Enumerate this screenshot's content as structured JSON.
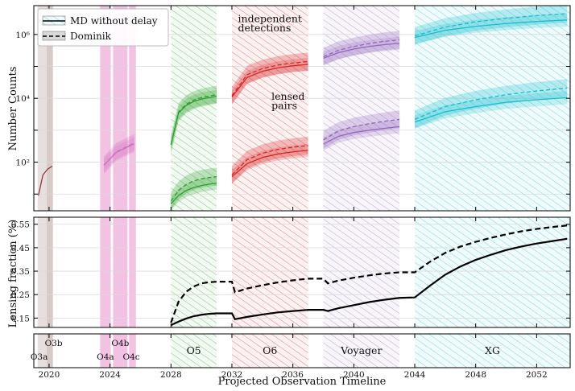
{
  "colors": {
    "O3": "#b9a39d",
    "O4": "#e377c2",
    "O5": "#2ca02c",
    "O6": "#d62728",
    "Voyager": "#9467bd",
    "XG": "#17becf",
    "O3_curve": "#8c3b3b",
    "O4_curve": "#cf6fc0",
    "fraction": "#000000"
  },
  "chart_data": [
    {
      "id": "counts",
      "type": "line",
      "ylabel": "Number Counts",
      "yscale": "log",
      "ylim": [
        3,
        8000000
      ],
      "yticks": [
        {
          "value": 100,
          "label": "10²"
        },
        {
          "value": 10000,
          "label": "10⁴"
        },
        {
          "value": 1000000,
          "label": "10⁶"
        }
      ],
      "legend": {
        "position": "top-left",
        "entries": [
          {
            "label": "MD without delay",
            "style": "solid"
          },
          {
            "label": "Dominik",
            "style": "dashed"
          }
        ]
      },
      "annotations": [
        {
          "text": "independent",
          "year": 2032.4,
          "y": 2400000
        },
        {
          "text": "detections",
          "year": 2032.4,
          "y": 1250000
        },
        {
          "text": "lensed",
          "year": 2034.6,
          "y": 9000
        },
        {
          "text": "pairs",
          "year": 2034.6,
          "y": 4600
        }
      ],
      "series": [
        {
          "run": "O3",
          "kind": "independent",
          "model": "MD without delay",
          "x": [
            2019.3,
            2019.6,
            2019.9,
            2020.2
          ],
          "y": [
            9,
            40,
            60,
            75
          ]
        },
        {
          "run": "O4",
          "kind": "independent",
          "model": "MD without delay",
          "x": [
            2023.6,
            2024.4,
            2025.6
          ],
          "y": [
            80,
            200,
            380
          ]
        },
        {
          "run": "O4",
          "kind": "independent",
          "model": "Dominik",
          "x": [
            2023.6,
            2024.4,
            2025.6
          ],
          "y": [
            80,
            210,
            400
          ]
        },
        {
          "run": "O5",
          "kind": "independent",
          "model": "MD without delay",
          "x": [
            2028.0,
            2028.5,
            2029.0,
            2029.5,
            2030.0,
            2030.5,
            2031.0
          ],
          "y": [
            350,
            3500,
            6000,
            8000,
            9500,
            10500,
            11500
          ]
        },
        {
          "run": "O5",
          "kind": "independent",
          "model": "Dominik",
          "x": [
            2028.0,
            2028.5,
            2029.0,
            2029.5,
            2030.0,
            2030.5,
            2031.0
          ],
          "y": [
            350,
            3700,
            6500,
            8800,
            10500,
            11800,
            13000
          ]
        },
        {
          "run": "O5",
          "kind": "lensed",
          "model": "MD without delay",
          "x": [
            2028.0,
            2028.5,
            2029.0,
            2029.5,
            2030.0,
            2030.5,
            2031.0
          ],
          "y": [
            5,
            9,
            13,
            16,
            18.5,
            20.5,
            22
          ]
        },
        {
          "run": "O5",
          "kind": "lensed",
          "model": "Dominik",
          "x": [
            2028.0,
            2028.5,
            2029.0,
            2029.5,
            2030.0,
            2030.5,
            2031.0
          ],
          "y": [
            6,
            13,
            20,
            26,
            30,
            33,
            35
          ]
        },
        {
          "run": "O6",
          "kind": "independent",
          "model": "MD without delay",
          "x": [
            2032.0,
            2033.0,
            2034.0,
            2035.0,
            2036.0,
            2037.0
          ],
          "y": [
            11000,
            45000,
            70000,
            90000,
            105000,
            115000
          ]
        },
        {
          "run": "O6",
          "kind": "independent",
          "model": "Dominik",
          "x": [
            2032.0,
            2033.0,
            2034.0,
            2035.0,
            2036.0,
            2037.0
          ],
          "y": [
            12000,
            55000,
            85000,
            110000,
            128000,
            142000
          ]
        },
        {
          "run": "O6",
          "kind": "lensed",
          "model": "MD without delay",
          "x": [
            2032.0,
            2033.0,
            2034.0,
            2035.0,
            2036.0,
            2037.0
          ],
          "y": [
            35,
            90,
            140,
            180,
            210,
            235
          ]
        },
        {
          "run": "O6",
          "kind": "lensed",
          "model": "Dominik",
          "x": [
            2032.0,
            2033.0,
            2034.0,
            2035.0,
            2036.0,
            2037.0
          ],
          "y": [
            40,
            120,
            190,
            250,
            295,
            330
          ]
        },
        {
          "run": "Voyager",
          "kind": "independent",
          "model": "MD without delay",
          "x": [
            2038.0,
            2039.0,
            2040.0,
            2041.0,
            2042.0,
            2043.0
          ],
          "y": [
            180000,
            270000,
            350000,
            420000,
            480000,
            530000
          ]
        },
        {
          "run": "Voyager",
          "kind": "independent",
          "model": "Dominik",
          "x": [
            2038.0,
            2039.0,
            2040.0,
            2041.0,
            2042.0,
            2043.0
          ],
          "y": [
            200000,
            320000,
            420000,
            520000,
            610000,
            680000
          ]
        },
        {
          "run": "Voyager",
          "kind": "lensed",
          "model": "MD without delay",
          "x": [
            2038.0,
            2039.0,
            2040.0,
            2041.0,
            2042.0,
            2043.0
          ],
          "y": [
            370,
            650,
            850,
            1000,
            1150,
            1300
          ]
        },
        {
          "run": "Voyager",
          "kind": "lensed",
          "model": "Dominik",
          "x": [
            2038.0,
            2039.0,
            2040.0,
            2041.0,
            2042.0,
            2043.0
          ],
          "y": [
            500,
            950,
            1300,
            1600,
            1900,
            2200
          ]
        },
        {
          "run": "XG",
          "kind": "independent",
          "model": "MD without delay",
          "x": [
            2044.0,
            2046.0,
            2048.0,
            2050.0,
            2052.0,
            2054.0
          ],
          "y": [
            800000,
            1350000,
            1800000,
            2200000,
            2550000,
            2850000
          ]
        },
        {
          "run": "XG",
          "kind": "independent",
          "model": "Dominik",
          "x": [
            2044.0,
            2046.0,
            2048.0,
            2050.0,
            2052.0,
            2054.0
          ],
          "y": [
            900000,
            1700000,
            2500000,
            3200000,
            3900000,
            4500000
          ]
        },
        {
          "run": "XG",
          "kind": "lensed",
          "model": "MD without delay",
          "x": [
            2044.0,
            2046.0,
            2048.0,
            2050.0,
            2052.0,
            2054.0
          ],
          "y": [
            1800,
            3800,
            5500,
            7500,
            9000,
            10500
          ]
        },
        {
          "run": "XG",
          "kind": "lensed",
          "model": "Dominik",
          "x": [
            2044.0,
            2046.0,
            2048.0,
            2050.0,
            2052.0,
            2054.0
          ],
          "y": [
            2200,
            5500,
            9000,
            13000,
            17000,
            21000
          ]
        }
      ]
    },
    {
      "id": "fraction",
      "type": "line",
      "ylabel": "Lensing fraction (%)",
      "ylim": [
        0.11,
        0.58
      ],
      "yticks": [
        {
          "value": 0.15,
          "label": "0.15"
        },
        {
          "value": 0.25,
          "label": "0.25"
        },
        {
          "value": 0.35,
          "label": "0.35"
        },
        {
          "value": 0.45,
          "label": "0.45"
        },
        {
          "value": 0.55,
          "label": "0.55"
        }
      ],
      "series": [
        {
          "name": "MD without delay",
          "style": "solid",
          "x": [
            2028.0,
            2028.5,
            2029.0,
            2029.5,
            2030.0,
            2030.5,
            2031.0,
            2032.0,
            2032.2,
            2033.0,
            2034.0,
            2035.0,
            2036.0,
            2037.0,
            2038.0,
            2038.3,
            2039.0,
            2040.0,
            2041.0,
            2042.0,
            2043.0,
            2044.0,
            2045.0,
            2046.0,
            2047.0,
            2048.0,
            2049.0,
            2050.0,
            2051.0,
            2052.0,
            2053.0,
            2054.0
          ],
          "y": [
            0.12,
            0.135,
            0.148,
            0.158,
            0.164,
            0.168,
            0.17,
            0.17,
            0.145,
            0.155,
            0.165,
            0.174,
            0.18,
            0.185,
            0.185,
            0.18,
            0.192,
            0.205,
            0.218,
            0.228,
            0.236,
            0.238,
            0.288,
            0.335,
            0.37,
            0.398,
            0.42,
            0.44,
            0.455,
            0.468,
            0.478,
            0.488
          ]
        },
        {
          "name": "Dominik",
          "style": "dashed",
          "x": [
            2028.0,
            2028.5,
            2029.0,
            2029.5,
            2030.0,
            2030.5,
            2031.0,
            2032.0,
            2032.2,
            2033.0,
            2034.0,
            2035.0,
            2036.0,
            2037.0,
            2038.0,
            2038.3,
            2039.0,
            2040.0,
            2041.0,
            2042.0,
            2043.0,
            2044.0,
            2045.0,
            2046.0,
            2047.0,
            2048.0,
            2049.0,
            2050.0,
            2051.0,
            2052.0,
            2053.0,
            2054.0
          ],
          "y": [
            0.13,
            0.22,
            0.262,
            0.285,
            0.298,
            0.303,
            0.305,
            0.305,
            0.26,
            0.276,
            0.29,
            0.302,
            0.311,
            0.318,
            0.318,
            0.298,
            0.31,
            0.322,
            0.332,
            0.34,
            0.345,
            0.345,
            0.39,
            0.428,
            0.455,
            0.475,
            0.492,
            0.507,
            0.52,
            0.53,
            0.538,
            0.545
          ]
        }
      ]
    }
  ],
  "timeline": {
    "xlabel": "Projected Observation Timeline",
    "xlim": [
      2019.0,
      2054.2
    ],
    "xticks": [
      "2020",
      "2024",
      "2028",
      "2032",
      "2036",
      "2040",
      "2044",
      "2048",
      "2052"
    ],
    "xtick_values": [
      2020,
      2024,
      2028,
      2032,
      2036,
      2040,
      2044,
      2048,
      2052
    ],
    "runs": [
      {
        "name": "O3a",
        "start": 2019.25,
        "end": 2020.25,
        "color_key": "O3",
        "hatch": false,
        "label_row": "low"
      },
      {
        "name": "O3b",
        "start": 2019.85,
        "end": 2020.25,
        "color_key": "O3",
        "hatch": false,
        "label_row": "high"
      },
      {
        "name": "O4a",
        "start": 2023.35,
        "end": 2024.05,
        "color_key": "O4",
        "hatch": false,
        "label_row": "low"
      },
      {
        "name": "O4b",
        "start": 2024.2,
        "end": 2025.15,
        "color_key": "O4",
        "hatch": false,
        "label_row": "high"
      },
      {
        "name": "O4c",
        "start": 2025.25,
        "end": 2025.7,
        "color_key": "O4",
        "hatch": false,
        "label_row": "low"
      },
      {
        "name": "O5",
        "start": 2028.0,
        "end": 2031.0,
        "color_key": "O5",
        "hatch": true,
        "label_row": "mid"
      },
      {
        "name": "O6",
        "start": 2032.0,
        "end": 2037.0,
        "color_key": "O6",
        "hatch": true,
        "label_row": "mid"
      },
      {
        "name": "Voyager",
        "start": 2038.0,
        "end": 2043.0,
        "color_key": "Voyager",
        "hatch": true,
        "label_row": "mid"
      },
      {
        "name": "XG",
        "start": 2044.0,
        "end": 2054.2,
        "color_key": "XG",
        "hatch": true,
        "label_row": "mid"
      }
    ]
  }
}
